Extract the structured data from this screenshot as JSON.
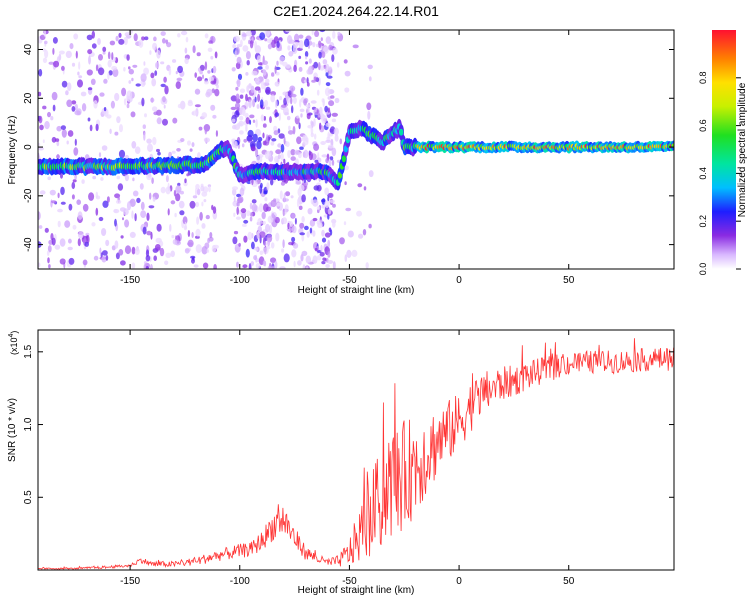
{
  "title": "C2E1.2024.264.22.14.R01",
  "chart_data": [
    {
      "type": "heatmap",
      "xlabel": "Height of straight line (km)",
      "ylabel": "Frequency (Hz)",
      "xlim": [
        -192,
        98
      ],
      "ylim": [
        -50,
        48
      ],
      "xticks": [
        -150,
        -100,
        -50,
        0,
        50
      ],
      "yticks": [
        -40,
        -20,
        0,
        20,
        40
      ],
      "colorbar": {
        "label": "Normalized spectral amplitude",
        "range": [
          0,
          1
        ],
        "ticks": [
          0.0,
          0.2,
          0.4,
          0.6,
          0.8
        ]
      },
      "ridge": {
        "x": [
          -192,
          -160,
          -130,
          -115,
          -110,
          -106,
          -103,
          -100,
          -95,
          -60,
          -55,
          -50,
          -45,
          -40,
          -35,
          -30,
          -27,
          -25,
          -20,
          0,
          20,
          50,
          98
        ],
        "frequency": [
          -8,
          -8,
          -7.5,
          -7,
          -2,
          0,
          -5,
          -12,
          -10,
          -10,
          -15,
          6,
          8,
          5,
          2,
          6,
          8,
          0,
          0,
          0,
          0,
          0,
          0
        ]
      },
      "grid": false
    },
    {
      "type": "line",
      "xlabel": "Height of straight line (km)",
      "ylabel": "SNR (10 * v/v)",
      "scale_label": "(x10",
      "scale_exp": "4",
      "scale_close": ")",
      "xlim": [
        -192,
        98
      ],
      "ylim": [
        0,
        1.65
      ],
      "xticks": [
        -150,
        -100,
        -50,
        0,
        50
      ],
      "yticks": [
        0.5,
        1.0,
        1.5
      ],
      "ytick_labels": [
        "0.5",
        "1.0",
        "1.5"
      ],
      "series": [
        {
          "color": "#ff3333",
          "x": [
            -192,
            -175,
            -160,
            -150,
            -145,
            -140,
            -130,
            -120,
            -110,
            -100,
            -95,
            -90,
            -85,
            -80,
            -75,
            -70,
            -65,
            -60,
            -55,
            -50,
            -45,
            -40,
            -35,
            -30,
            -25,
            -20,
            -15,
            -10,
            -5,
            0,
            5,
            10,
            15,
            20,
            25,
            30,
            40,
            50,
            60,
            70,
            80,
            90,
            98
          ],
          "values": [
            0.01,
            0.01,
            0.02,
            0.03,
            0.07,
            0.04,
            0.04,
            0.06,
            0.1,
            0.13,
            0.14,
            0.2,
            0.3,
            0.35,
            0.22,
            0.12,
            0.08,
            0.05,
            0.06,
            0.12,
            0.25,
            0.38,
            0.5,
            0.6,
            0.65,
            0.72,
            0.8,
            0.88,
            0.95,
            1.02,
            1.12,
            1.2,
            1.25,
            1.28,
            1.3,
            1.33,
            1.38,
            1.42,
            1.43,
            1.43,
            1.44,
            1.45,
            1.45
          ],
          "noise": [
            0.005,
            0.005,
            0.01,
            0.01,
            0.02,
            0.02,
            0.02,
            0.03,
            0.04,
            0.05,
            0.05,
            0.07,
            0.1,
            0.12,
            0.08,
            0.05,
            0.03,
            0.03,
            0.04,
            0.1,
            0.2,
            0.3,
            0.35,
            0.38,
            0.38,
            0.35,
            0.3,
            0.25,
            0.22,
            0.2,
            0.18,
            0.15,
            0.14,
            0.12,
            0.11,
            0.1,
            0.09,
            0.08,
            0.08,
            0.08,
            0.08,
            0.08,
            0.08
          ]
        }
      ],
      "grid": false
    }
  ]
}
